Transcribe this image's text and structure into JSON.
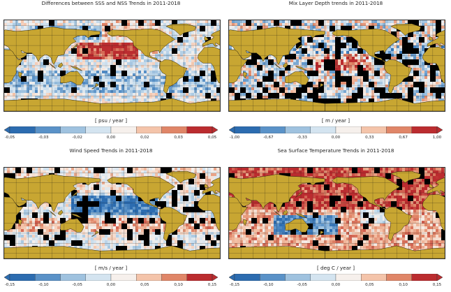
{
  "panels": [
    {
      "id": "sss-nss",
      "title": "Differences between SSS and NSS Trends in 2011-2018",
      "unit": "[ psu / year ]",
      "ticks": [
        "-0,05",
        "-0,03",
        "-0,02",
        "0,00",
        "0,02",
        "0,03",
        "0,05"
      ],
      "pattern": "sss"
    },
    {
      "id": "mld",
      "title": "Mix Layer Depth trends in 2011-2018",
      "unit": "[ m / year ]",
      "ticks": [
        "-1,00",
        "-0,67",
        "-0,33",
        "0,00",
        "0,33",
        "0,67",
        "1,00"
      ],
      "pattern": "mld"
    },
    {
      "id": "wind",
      "title": "Wind Speed Trends in 2011-2018",
      "unit": "[ m/s / year ]",
      "ticks": [
        "-0,15",
        "-0,10",
        "-0,05",
        "0,00",
        "0,05",
        "0,10",
        "0,15"
      ],
      "pattern": "wind"
    },
    {
      "id": "sst",
      "title": "Sea Surface Temperature Trends in 2011-2018",
      "unit": "[ deg C / year ]",
      "ticks": [
        "-0,15",
        "-0,10",
        "-0,05",
        "0,00",
        "0,05",
        "0,10",
        "0,15"
      ],
      "pattern": "sst"
    }
  ],
  "colors": {
    "land": "#c8a632",
    "mask": "#000000",
    "colorbar": [
      "#2c6cb0",
      "#5a92c8",
      "#9fc2df",
      "#d4e4f0",
      "#f6f0ec",
      "#f4c4aa",
      "#e08668",
      "#bb2c2f"
    ]
  }
}
